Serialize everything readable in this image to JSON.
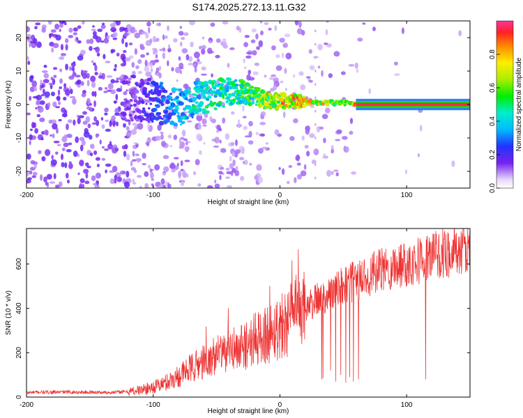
{
  "title": "S174.2025.272.13.11.G32",
  "chart_data": [
    {
      "type": "heatmap",
      "xlabel": "Height of straight line (km)",
      "ylabel": "Frequency (Hz)",
      "xlim": [
        -200,
        150
      ],
      "ylim": [
        -25,
        25
      ],
      "xticks": [
        "-200",
        "-100",
        "0",
        "100"
      ],
      "xtick_values": [
        -200,
        -100,
        0,
        100
      ],
      "yticks": [
        "-20",
        "-10",
        "0",
        "10",
        "20"
      ],
      "ytick_values": [
        -20,
        -10,
        0,
        10,
        20
      ],
      "colorbar": {
        "label": "Normalized spectral amplitude",
        "range": [
          0,
          1
        ],
        "ticks": [
          "0.0",
          "0.2",
          "0.4",
          "0.6",
          "0.8"
        ],
        "tick_values": [
          0.0,
          0.2,
          0.4,
          0.6,
          0.8
        ]
      },
      "ridge": {
        "x": [
          -120,
          -110,
          -100,
          -90,
          -80,
          -70,
          -60,
          -50,
          -40,
          -30,
          -20,
          -10,
          0,
          10,
          20,
          30,
          40,
          50,
          60,
          80,
          100,
          120,
          150
        ],
        "frequency": [
          2,
          1.5,
          1,
          0,
          -1,
          1,
          2,
          3,
          4,
          4,
          2,
          1,
          1,
          1,
          0.8,
          0.6,
          0.5,
          0.4,
          0,
          0,
          0,
          0,
          0
        ],
        "amplitude": [
          0.15,
          0.2,
          0.25,
          0.3,
          0.4,
          0.45,
          0.5,
          0.5,
          0.5,
          0.55,
          0.6,
          0.75,
          0.85,
          0.85,
          0.85,
          0.8,
          0.75,
          0.7,
          0.9,
          0.95,
          0.95,
          0.95,
          0.95
        ]
      }
    },
    {
      "type": "line",
      "xlabel": "Height of straight line (km)",
      "ylabel": "SNR (10 * v/v)",
      "xlim": [
        -200,
        150
      ],
      "ylim": [
        0,
        760
      ],
      "xticks": [
        "-200",
        "-100",
        "0",
        "100"
      ],
      "xtick_values": [
        -200,
        -100,
        0,
        100
      ],
      "yticks": [
        "0",
        "200",
        "400",
        "600"
      ],
      "ytick_values": [
        0,
        200,
        400,
        600
      ],
      "series": [
        {
          "name": "SNR",
          "color": "#ee3333",
          "x": [
            -200,
            -190,
            -180,
            -170,
            -160,
            -150,
            -140,
            -130,
            -120,
            -110,
            -100,
            -90,
            -80,
            -70,
            -60,
            -50,
            -40,
            -30,
            -20,
            -10,
            0,
            10,
            20,
            30,
            40,
            50,
            60,
            70,
            80,
            90,
            100,
            110,
            120,
            130,
            140,
            150
          ],
          "values": [
            20,
            22,
            22,
            23,
            22,
            22,
            21,
            22,
            25,
            32,
            45,
            65,
            95,
            130,
            160,
            185,
            205,
            225,
            255,
            285,
            320,
            365,
            400,
            440,
            470,
            500,
            525,
            550,
            570,
            590,
            605,
            620,
            635,
            650,
            660,
            670
          ]
        }
      ],
      "dropouts": [
        {
          "x": 33,
          "value": 80
        },
        {
          "x": 34,
          "value": 85
        },
        {
          "x": 40,
          "value": 120
        },
        {
          "x": 44,
          "value": 70
        },
        {
          "x": 48,
          "value": 100
        },
        {
          "x": 52,
          "value": 65
        },
        {
          "x": 55,
          "value": 90
        },
        {
          "x": 58,
          "value": 70
        },
        {
          "x": 62,
          "value": 80
        },
        {
          "x": 115,
          "value": 80
        }
      ]
    }
  ]
}
